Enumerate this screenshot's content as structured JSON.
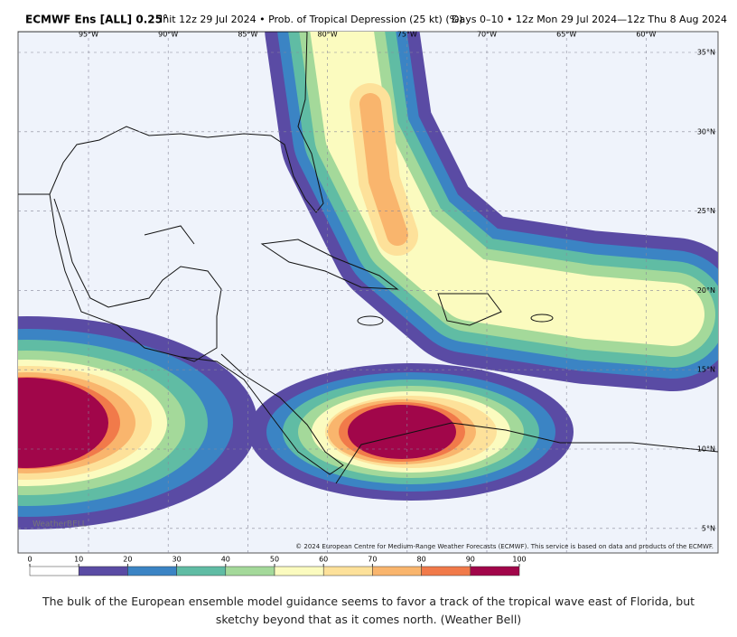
{
  "header": {
    "model": "ECMWF Ens [ALL] 0.25°",
    "init": "Init 12z 29 Jul 2024 • Prob. of Tropical Depression (25 kt) (%)",
    "period": "Days 0–10 • 12z Mon 29 Jul 2024—12z Thu 8 Aug 2024"
  },
  "map": {
    "lon_labels": [
      "95°W",
      "90°W",
      "85°W",
      "80°W",
      "75°W",
      "70°W",
      "65°W",
      "60°W"
    ],
    "lat_labels": [
      "35°N",
      "30°N",
      "25°N",
      "20°N",
      "15°N",
      "10°N",
      "5°N"
    ],
    "credit": "© 2024 European Centre for Medium-Range Weather Forecasts (ECMWF). This service is based on data and products of the ECMWF.",
    "logo": "WeatherBELL"
  },
  "colorbar": {
    "ticks": [
      0,
      10,
      20,
      30,
      40,
      50,
      60,
      70,
      80,
      90,
      100
    ],
    "colors": [
      "#ffffff",
      "#5a4ba4",
      "#3b84c4",
      "#60bca4",
      "#a4d99a",
      "#fbfbbf",
      "#fde19a",
      "#f9b56d",
      "#f17a4a",
      "#a1064a"
    ]
  },
  "caption": "The bulk of the European ensemble model guidance seems to favor a track of the tropical wave east of Florida, but sketchy beyond that as it comes north. (Weather Bell)"
}
